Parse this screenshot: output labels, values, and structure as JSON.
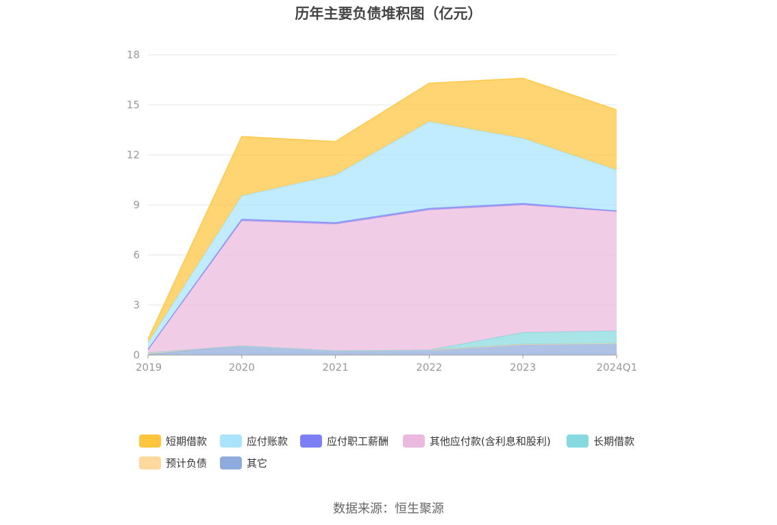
{
  "chart_data": {
    "type": "area",
    "stacked": true,
    "title": "历年主要负债堆积图（亿元）",
    "categories": [
      "2019",
      "2020",
      "2021",
      "2022",
      "2023",
      "2024Q1"
    ],
    "ylim": [
      0,
      18
    ],
    "yticks": [
      0,
      3,
      6,
      9,
      12,
      15,
      18
    ],
    "grid": true,
    "legend_position": "bottom",
    "series": [
      {
        "name": "其它",
        "color": "#8fabdd",
        "values": [
          0.05,
          0.55,
          0.25,
          0.3,
          0.65,
          0.7
        ]
      },
      {
        "name": "预计负债",
        "color": "#ffd89e",
        "values": [
          0.08,
          0.0,
          0.0,
          0.0,
          0.0,
          0.0
        ]
      },
      {
        "name": "长期借款",
        "color": "#86d9df",
        "values": [
          0.0,
          0.0,
          0.0,
          0.0,
          0.7,
          0.75
        ]
      },
      {
        "name": "其他应付款(含利息和股利)",
        "color": "#ecb9de",
        "values": [
          0.17,
          7.5,
          7.6,
          8.4,
          7.65,
          7.15
        ]
      },
      {
        "name": "应付职工薪酬",
        "color": "#7c80f4",
        "values": [
          0.05,
          0.1,
          0.1,
          0.1,
          0.1,
          0.05
        ]
      },
      {
        "name": "应付账款",
        "color": "#a9e3fd",
        "values": [
          0.4,
          1.4,
          2.85,
          5.2,
          3.9,
          2.45
        ]
      },
      {
        "name": "短期借款",
        "color": "#ffc53d",
        "values": [
          0.2,
          3.55,
          2.0,
          2.3,
          3.6,
          3.6
        ]
      }
    ]
  },
  "legend": [
    {
      "label": "短期借款",
      "color": "#ffc53d"
    },
    {
      "label": "应付账款",
      "color": "#a9e3fd"
    },
    {
      "label": "应付职工薪酬",
      "color": "#7c80f4"
    },
    {
      "label": "其他应付款(含利息和股利)",
      "color": "#ecb9de"
    },
    {
      "label": "长期借款",
      "color": "#86d9df"
    },
    {
      "label": "预计负债",
      "color": "#ffd89e"
    },
    {
      "label": "其它",
      "color": "#8fabdd"
    }
  ],
  "source": "数据来源：恒生聚源"
}
